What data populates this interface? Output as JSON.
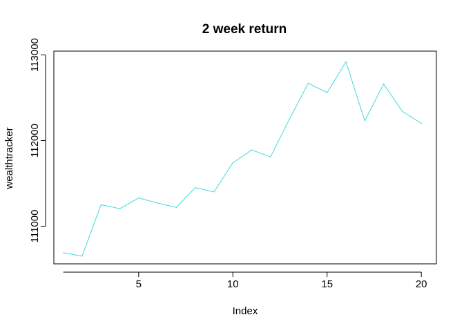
{
  "chart_data": {
    "type": "line",
    "title": "2 week return",
    "xlabel": "Index",
    "ylabel": "wealthtracker",
    "xlim": [
      0.5,
      20.8
    ],
    "ylim": [
      110560,
      113045
    ],
    "x_ticks": [
      5,
      10,
      15,
      20
    ],
    "x_tick_labels": [
      "5",
      "10",
      "15",
      "20"
    ],
    "y_ticks": [
      111000,
      112000,
      113000
    ],
    "y_tick_labels": [
      "111000",
      "112000",
      "113000"
    ],
    "grid": false,
    "legend": "none",
    "series": [
      {
        "color": "#40d8d8",
        "x": [
          1,
          2,
          3,
          4,
          5,
          6,
          7,
          8,
          9,
          10,
          11,
          12,
          13,
          14,
          15,
          16,
          17,
          18,
          19,
          20
        ],
        "values": [
          110690,
          110650,
          111250,
          111205,
          111330,
          111270,
          111220,
          111450,
          111400,
          111740,
          111890,
          111810,
          112250,
          112670,
          112560,
          112920,
          112230,
          112660,
          112340,
          112200
        ]
      }
    ]
  }
}
